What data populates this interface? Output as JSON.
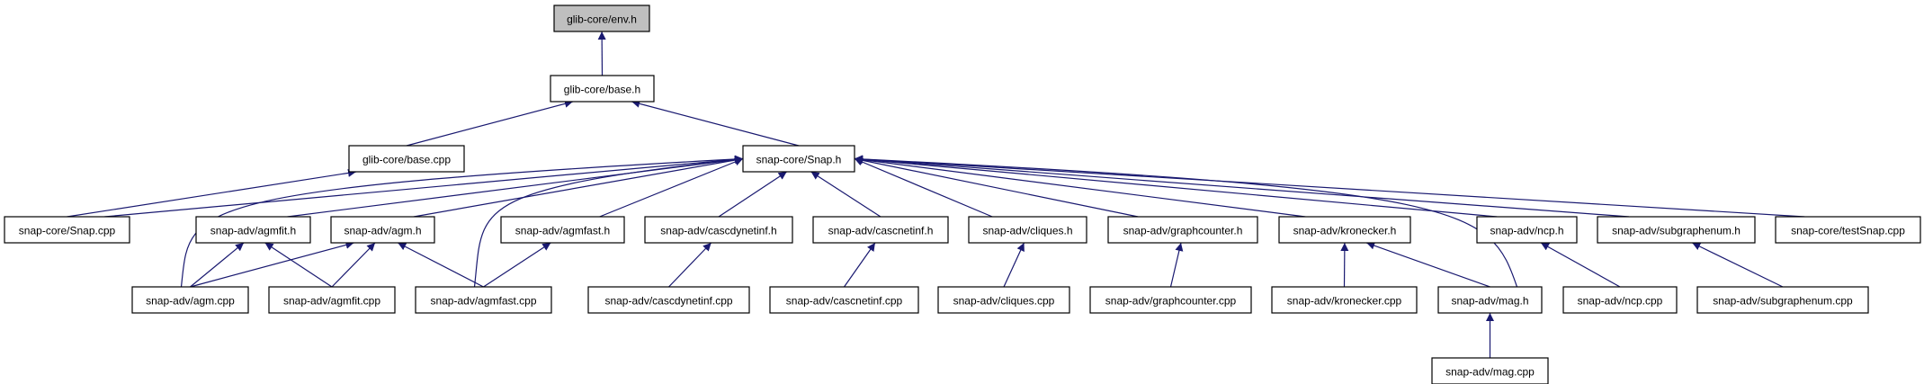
{
  "diagram": {
    "type": "include-dependency-graph",
    "edge_color": "#191970",
    "root_fill": "#bfbfbf",
    "nodes": [
      {
        "id": "env_h",
        "label": "glib-core/env.h",
        "root": true
      },
      {
        "id": "base_h",
        "label": "glib-core/base.h"
      },
      {
        "id": "base_cpp",
        "label": "glib-core/base.cpp"
      },
      {
        "id": "snap_h",
        "label": "snap-core/Snap.h"
      },
      {
        "id": "snap_cpp",
        "label": "snap-core/Snap.cpp"
      },
      {
        "id": "agmfit_h",
        "label": "snap-adv/agmfit.h"
      },
      {
        "id": "agm_h",
        "label": "snap-adv/agm.h"
      },
      {
        "id": "agmfast_h",
        "label": "snap-adv/agmfast.h"
      },
      {
        "id": "cascdynetinf_h",
        "label": "snap-adv/cascdynetinf.h"
      },
      {
        "id": "cascnetinf_h",
        "label": "snap-adv/cascnetinf.h"
      },
      {
        "id": "cliques_h",
        "label": "snap-adv/cliques.h"
      },
      {
        "id": "graphcounter_h",
        "label": "snap-adv/graphcounter.h"
      },
      {
        "id": "kronecker_h",
        "label": "snap-adv/kronecker.h"
      },
      {
        "id": "ncp_h",
        "label": "snap-adv/ncp.h"
      },
      {
        "id": "subgraphenum_h",
        "label": "snap-adv/subgraphenum.h"
      },
      {
        "id": "testsnap_cpp",
        "label": "snap-core/testSnap.cpp"
      },
      {
        "id": "agm_cpp",
        "label": "snap-adv/agm.cpp"
      },
      {
        "id": "agmfit_cpp",
        "label": "snap-adv/agmfit.cpp"
      },
      {
        "id": "agmfast_cpp",
        "label": "snap-adv/agmfast.cpp"
      },
      {
        "id": "cascdynetinf_cpp",
        "label": "snap-adv/cascdynetinf.cpp"
      },
      {
        "id": "cascnetinf_cpp",
        "label": "snap-adv/cascnetinf.cpp"
      },
      {
        "id": "cliques_cpp",
        "label": "snap-adv/cliques.cpp"
      },
      {
        "id": "graphcounter_cpp",
        "label": "snap-adv/graphcounter.cpp"
      },
      {
        "id": "kronecker_cpp",
        "label": "snap-adv/kronecker.cpp"
      },
      {
        "id": "mag_h",
        "label": "snap-adv/mag.h"
      },
      {
        "id": "ncp_cpp",
        "label": "snap-adv/ncp.cpp"
      },
      {
        "id": "subgraphenum_cpp",
        "label": "snap-adv/subgraphenum.cpp"
      },
      {
        "id": "mag_cpp",
        "label": "snap-adv/mag.cpp"
      }
    ],
    "edges": [
      [
        "base_h",
        "env_h"
      ],
      [
        "base_cpp",
        "base_h"
      ],
      [
        "snap_h",
        "base_h"
      ],
      [
        "snap_cpp",
        "base_cpp"
      ],
      [
        "snap_cpp",
        "snap_h"
      ],
      [
        "agmfit_h",
        "snap_h"
      ],
      [
        "agm_h",
        "snap_h"
      ],
      [
        "agmfast_h",
        "snap_h"
      ],
      [
        "cascdynetinf_h",
        "snap_h"
      ],
      [
        "cascnetinf_h",
        "snap_h"
      ],
      [
        "cliques_h",
        "snap_h"
      ],
      [
        "graphcounter_h",
        "snap_h"
      ],
      [
        "kronecker_h",
        "snap_h"
      ],
      [
        "ncp_h",
        "snap_h"
      ],
      [
        "subgraphenum_h",
        "snap_h"
      ],
      [
        "testsnap_cpp",
        "snap_h"
      ],
      [
        "agm_cpp",
        "snap_h"
      ],
      [
        "agmfast_cpp",
        "snap_h"
      ],
      [
        "mag_h",
        "snap_h"
      ],
      [
        "agm_cpp",
        "agmfit_h"
      ],
      [
        "agm_cpp",
        "agm_h"
      ],
      [
        "agmfit_cpp",
        "agmfit_h"
      ],
      [
        "agmfit_cpp",
        "agm_h"
      ],
      [
        "agmfast_cpp",
        "agm_h"
      ],
      [
        "agmfast_cpp",
        "agmfast_h"
      ],
      [
        "cascdynetinf_cpp",
        "cascdynetinf_h"
      ],
      [
        "cascnetinf_cpp",
        "cascnetinf_h"
      ],
      [
        "cliques_cpp",
        "cliques_h"
      ],
      [
        "graphcounter_cpp",
        "graphcounter_h"
      ],
      [
        "kronecker_cpp",
        "kronecker_h"
      ],
      [
        "mag_h",
        "kronecker_h"
      ],
      [
        "ncp_cpp",
        "ncp_h"
      ],
      [
        "subgraphenum_cpp",
        "subgraphenum_h"
      ],
      [
        "mag_cpp",
        "mag_h"
      ]
    ]
  }
}
